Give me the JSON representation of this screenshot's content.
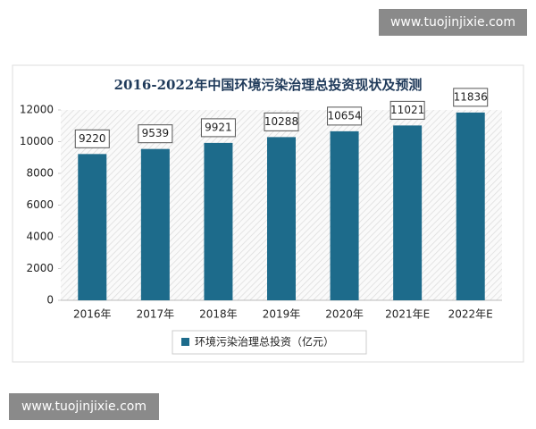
{
  "chart_data": {
    "type": "bar",
    "title": "2016-2022年中国环境污染治理总投资现状及预测",
    "categories": [
      "2016年",
      "2017年",
      "2018年",
      "2019年",
      "2020年",
      "2021年E",
      "2022年E"
    ],
    "series": [
      {
        "name": "环境污染治理总投资（亿元）",
        "color": "#1d6b8b",
        "values": [
          9220,
          9539,
          9921,
          10288,
          10654,
          11021,
          11836
        ]
      }
    ],
    "ylim": [
      0,
      12000
    ],
    "yticks": [
      0,
      2000,
      4000,
      6000,
      8000,
      10000,
      12000
    ],
    "legend": "bottom"
  },
  "watermarks": [
    "www.tuojinjixie.com",
    "www.tuojinjixie.com"
  ]
}
